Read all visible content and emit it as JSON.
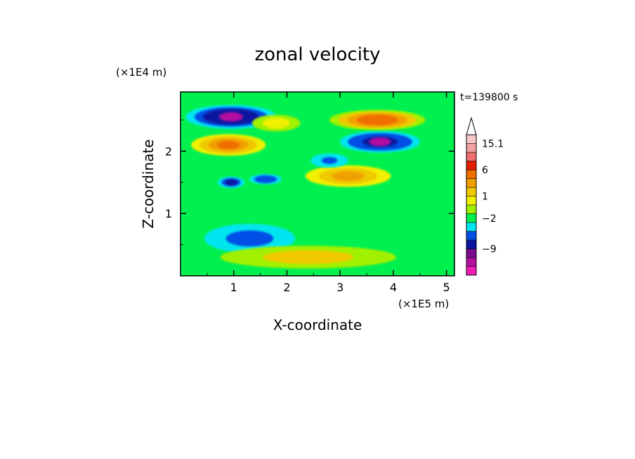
{
  "chart_data": {
    "type": "heatmap",
    "title": "zonal velocity",
    "xlabel": "X-coordinate",
    "ylabel": "Z-coordinate",
    "x_unit": "(×1E5 m)",
    "y_unit": "(×1E4 m)",
    "time_label": "t=139800 s",
    "xlim": [
      0,
      5.15
    ],
    "ylim": [
      0,
      2.95
    ],
    "x_ticks": [
      {
        "value": 1,
        "label": "1"
      },
      {
        "value": 2,
        "label": "2"
      },
      {
        "value": 3,
        "label": "3"
      },
      {
        "value": 4,
        "label": "4"
      },
      {
        "value": 5,
        "label": "5"
      }
    ],
    "y_ticks": [
      {
        "value": 1,
        "label": "1"
      },
      {
        "value": 2,
        "label": "2"
      }
    ],
    "colorbar": {
      "colors": [
        "#f01eb4",
        "#b40fa0",
        "#7a0a8c",
        "#0a14a0",
        "#0050e6",
        "#00e6f0",
        "#00f050",
        "#a0f000",
        "#f0f000",
        "#f0c800",
        "#f0a000",
        "#f06e00",
        "#e61e00",
        "#f06e6e",
        "#f0a0a0",
        "#f8c8c8"
      ],
      "labels": [
        {
          "value": "15.1",
          "level": 15
        },
        {
          "value": "6",
          "level": 12
        },
        {
          "value": "1",
          "level": 9
        },
        {
          "value": "−2",
          "level": 6.5
        },
        {
          "value": "−9",
          "level": 3
        }
      ]
    },
    "field_blobs": [
      {
        "x": 0.95,
        "z": 2.55,
        "rx": 0.8,
        "rz": 0.16,
        "u": -10
      },
      {
        "x": 3.75,
        "z": 2.15,
        "rx": 0.7,
        "rz": 0.14,
        "u": -9
      },
      {
        "x": 3.7,
        "z": 2.5,
        "rx": 0.85,
        "rz": 0.13,
        "u": 9
      },
      {
        "x": 0.9,
        "z": 2.1,
        "rx": 0.65,
        "rz": 0.14,
        "u": 8
      },
      {
        "x": 3.15,
        "z": 1.6,
        "rx": 0.75,
        "rz": 0.14,
        "u": 6
      },
      {
        "x": 2.8,
        "z": 1.85,
        "rx": 0.3,
        "rz": 0.08,
        "u": -4
      },
      {
        "x": 0.95,
        "z": 1.5,
        "rx": 0.2,
        "rz": 0.06,
        "u": -6
      },
      {
        "x": 1.6,
        "z": 1.55,
        "rx": 0.25,
        "rz": 0.05,
        "u": -5
      },
      {
        "x": 1.3,
        "z": 0.6,
        "rx": 0.8,
        "rz": 0.2,
        "u": -3
      },
      {
        "x": 2.4,
        "z": 0.3,
        "rx": 1.6,
        "rz": 0.15,
        "u": 3
      },
      {
        "x": 1.8,
        "z": 2.45,
        "rx": 0.4,
        "rz": 0.1,
        "u": 2
      }
    ]
  }
}
